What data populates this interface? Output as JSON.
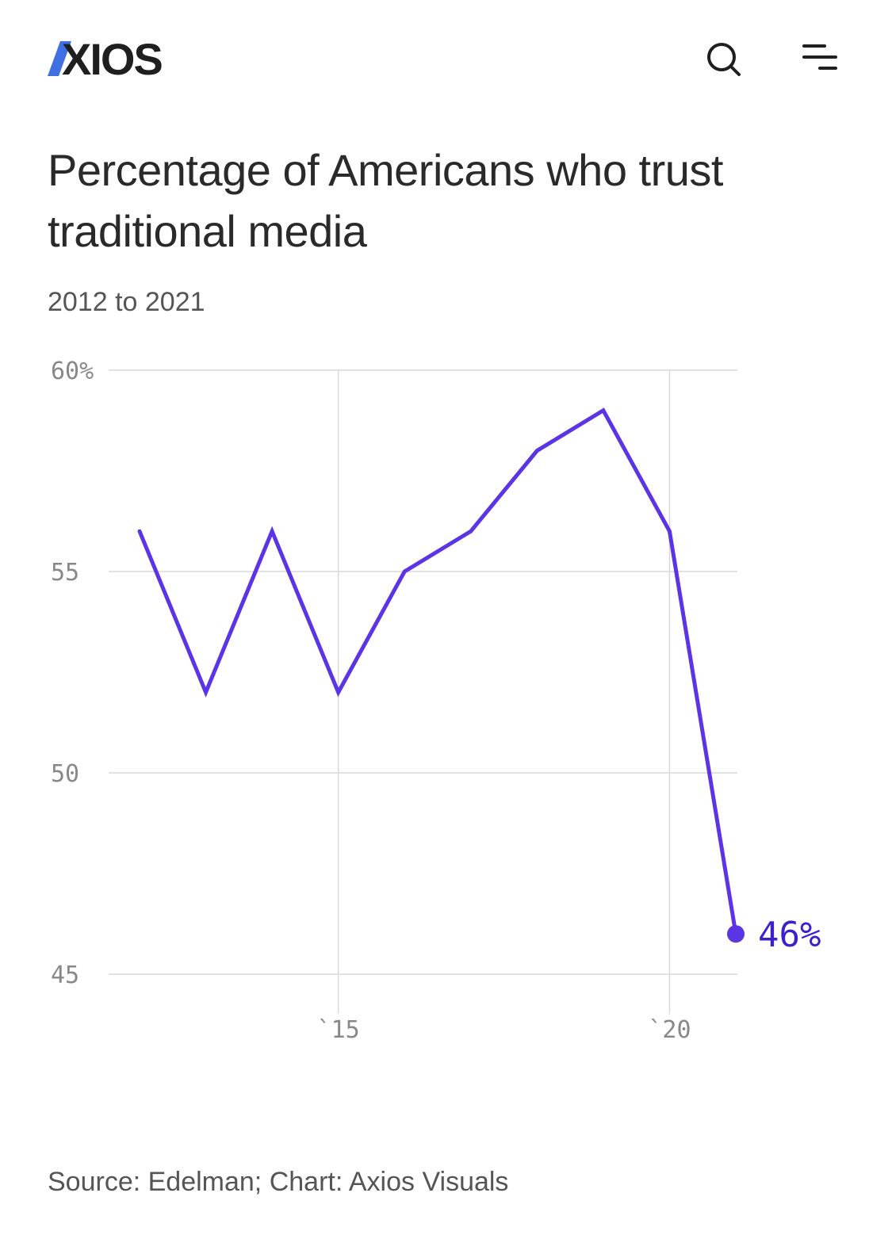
{
  "header": {
    "logo_text": "AXIOS",
    "search_icon": "search-icon",
    "menu_icon": "menu-icon"
  },
  "title": "Percentage of Americans who trust traditional media",
  "subtitle": "2012 to 2021",
  "source": "Source: Edelman; Chart: Axios Visuals",
  "colors": {
    "line": "#5b34e6",
    "end_label": "#3d1fd0",
    "grid": "#d9d9d9",
    "tick": "#888888",
    "logo_accent": "#3f6fe0"
  },
  "chart_data": {
    "type": "line",
    "x": [
      2012,
      2013,
      2014,
      2015,
      2016,
      2017,
      2018,
      2019,
      2020,
      2021
    ],
    "series": [
      {
        "values": [
          56,
          52,
          56,
          52,
          55,
          56,
          58,
          59,
          56,
          46
        ]
      }
    ],
    "ylim": [
      45,
      60
    ],
    "xlim": [
      2012,
      2021
    ],
    "y_ticks": [
      {
        "value": 60,
        "label": "60%"
      },
      {
        "value": 55,
        "label": "55"
      },
      {
        "value": 50,
        "label": "50"
      },
      {
        "value": 45,
        "label": "45"
      }
    ],
    "x_ticks": [
      {
        "value": 2015,
        "label": "`15"
      },
      {
        "value": 2020,
        "label": "`20"
      }
    ],
    "end_label": "46%",
    "grid": true
  }
}
